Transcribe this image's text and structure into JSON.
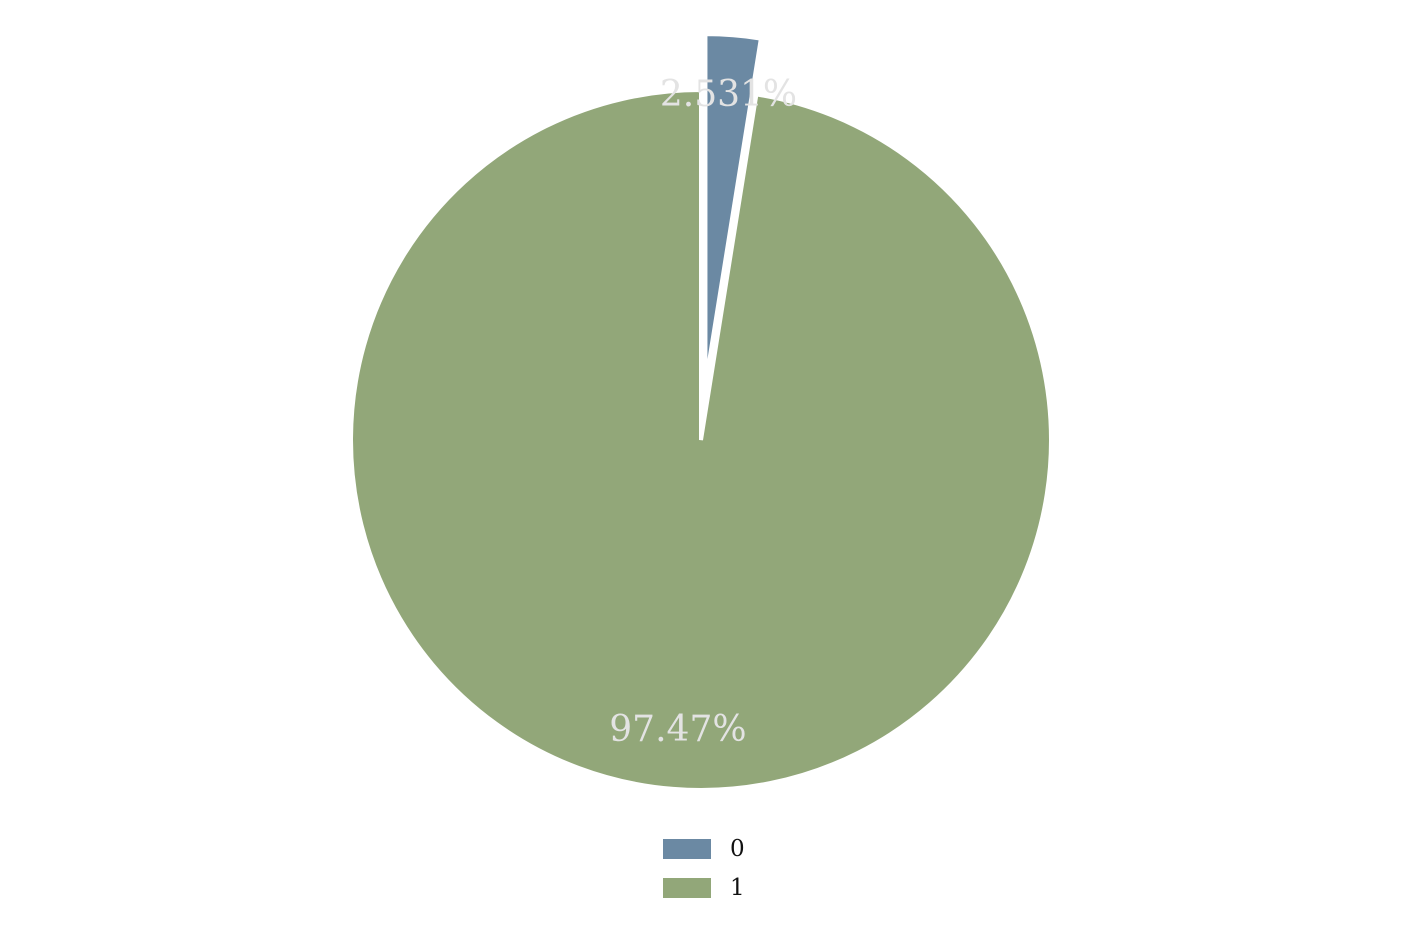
{
  "chart_data": {
    "type": "pie",
    "categories": [
      "0",
      "1"
    ],
    "values": [
      2.531,
      97.469
    ],
    "labels": [
      "2.531%",
      "97.47%"
    ],
    "colors": [
      "#6b89a3",
      "#92a779"
    ],
    "exploded": [
      true,
      false
    ],
    "start": "top, clockwise",
    "legend": {
      "position": "bottom-center",
      "entries": [
        "0",
        "1"
      ]
    },
    "title": "",
    "label_color": "#e3e3e3",
    "edge_color": "#ffffff"
  }
}
